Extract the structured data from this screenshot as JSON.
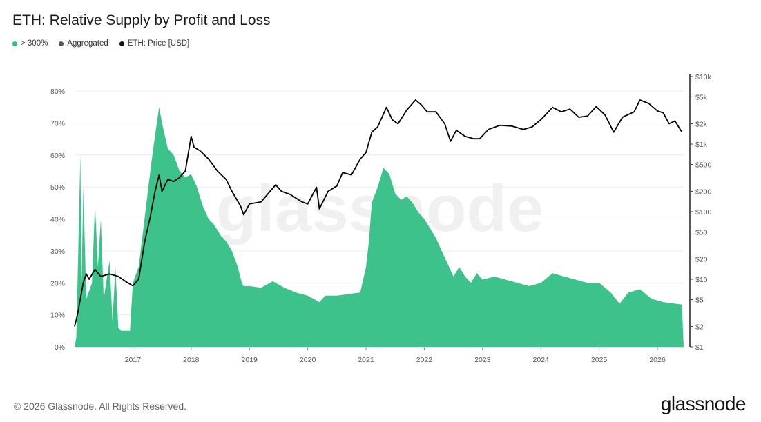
{
  "title": "ETH: Relative Supply by Profit and Loss",
  "legend": [
    {
      "label": "> 300%",
      "color": "#2fbf85",
      "icon": "dot"
    },
    {
      "label": "Aggregated",
      "color": "#555555",
      "icon": "dot"
    },
    {
      "label": "ETH: Price [USD]",
      "color": "#111111",
      "icon": "dot"
    }
  ],
  "footer": "© 2026 Glassnode. All Rights Reserved.",
  "brand": "glassnode",
  "watermark": "glassnode",
  "colors": {
    "area": "#3ec28c",
    "price": "#000000",
    "grid": "#ececec",
    "axis": "#222222"
  },
  "chart_data": {
    "type": "area",
    "y_left": {
      "ticks": [
        "0%",
        "10%",
        "20%",
        "30%",
        "40%",
        "50%",
        "60%",
        "70%",
        "80%"
      ],
      "range": [
        0,
        80
      ],
      "unit": "%"
    },
    "y_right": {
      "scale": "log",
      "ticks": [
        "$1",
        "$2",
        "$5",
        "$10",
        "$20",
        "$50",
        "$100",
        "$200",
        "$500",
        "$1k",
        "$2k",
        "$5k",
        "$10k"
      ],
      "tick_values": [
        1,
        2,
        5,
        10,
        20,
        50,
        100,
        200,
        500,
        1000,
        2000,
        5000,
        10000
      ]
    },
    "x": {
      "ticks": [
        "2017",
        "2018",
        "2019",
        "2020",
        "2021",
        "2022",
        "2023",
        "2024",
        "2025",
        "2026"
      ],
      "range": [
        2016.0,
        2026.45
      ]
    },
    "grid": true,
    "series": [
      {
        "name": "> 300%",
        "axis": "left",
        "type": "area",
        "points": [
          [
            2016.0,
            0
          ],
          [
            2016.03,
            3
          ],
          [
            2016.1,
            60
          ],
          [
            2016.12,
            20
          ],
          [
            2016.15,
            50
          ],
          [
            2016.2,
            15
          ],
          [
            2016.3,
            20
          ],
          [
            2016.35,
            45
          ],
          [
            2016.4,
            25
          ],
          [
            2016.45,
            40
          ],
          [
            2016.5,
            15
          ],
          [
            2016.6,
            27
          ],
          [
            2016.65,
            8
          ],
          [
            2016.7,
            25
          ],
          [
            2016.75,
            6
          ],
          [
            2016.8,
            5
          ],
          [
            2016.95,
            5
          ],
          [
            2017.0,
            20
          ],
          [
            2017.1,
            25
          ],
          [
            2017.2,
            40
          ],
          [
            2017.3,
            55
          ],
          [
            2017.35,
            62
          ],
          [
            2017.45,
            75
          ],
          [
            2017.5,
            70
          ],
          [
            2017.6,
            62
          ],
          [
            2017.7,
            60
          ],
          [
            2017.8,
            55
          ],
          [
            2017.9,
            53
          ],
          [
            2018.0,
            54
          ],
          [
            2018.1,
            50
          ],
          [
            2018.2,
            44
          ],
          [
            2018.3,
            40
          ],
          [
            2018.4,
            38
          ],
          [
            2018.5,
            35
          ],
          [
            2018.6,
            33
          ],
          [
            2018.7,
            30
          ],
          [
            2018.8,
            25
          ],
          [
            2018.87,
            20
          ],
          [
            2018.9,
            19
          ],
          [
            2019.0,
            19
          ],
          [
            2019.2,
            18.5
          ],
          [
            2019.4,
            20.5
          ],
          [
            2019.6,
            18.5
          ],
          [
            2019.8,
            17
          ],
          [
            2020.0,
            16
          ],
          [
            2020.1,
            15
          ],
          [
            2020.2,
            14
          ],
          [
            2020.3,
            16
          ],
          [
            2020.5,
            16
          ],
          [
            2020.7,
            16.5
          ],
          [
            2020.9,
            17
          ],
          [
            2021.0,
            25
          ],
          [
            2021.05,
            33
          ],
          [
            2021.1,
            45
          ],
          [
            2021.2,
            50
          ],
          [
            2021.3,
            56
          ],
          [
            2021.4,
            54
          ],
          [
            2021.5,
            48
          ],
          [
            2021.6,
            46
          ],
          [
            2021.7,
            47
          ],
          [
            2021.8,
            45
          ],
          [
            2021.9,
            42
          ],
          [
            2022.0,
            40
          ],
          [
            2022.1,
            37
          ],
          [
            2022.2,
            34
          ],
          [
            2022.3,
            30
          ],
          [
            2022.4,
            26
          ],
          [
            2022.5,
            22
          ],
          [
            2022.6,
            25
          ],
          [
            2022.7,
            22
          ],
          [
            2022.8,
            20
          ],
          [
            2022.9,
            23
          ],
          [
            2023.0,
            21
          ],
          [
            2023.2,
            22
          ],
          [
            2023.4,
            21
          ],
          [
            2023.6,
            20
          ],
          [
            2023.8,
            19
          ],
          [
            2024.0,
            20
          ],
          [
            2024.2,
            23
          ],
          [
            2024.4,
            22
          ],
          [
            2024.6,
            21
          ],
          [
            2024.8,
            20
          ],
          [
            2025.0,
            20
          ],
          [
            2025.2,
            17
          ],
          [
            2025.35,
            13.5
          ],
          [
            2025.5,
            17
          ],
          [
            2025.7,
            18
          ],
          [
            2025.9,
            15
          ],
          [
            2026.1,
            14
          ],
          [
            2026.3,
            13.5
          ],
          [
            2026.42,
            13.2
          ],
          [
            2026.45,
            0
          ]
        ]
      },
      {
        "name": "ETH: Price [USD]",
        "axis": "right",
        "type": "line",
        "points": [
          [
            2016.0,
            2
          ],
          [
            2016.05,
            3
          ],
          [
            2016.15,
            9
          ],
          [
            2016.2,
            12
          ],
          [
            2016.25,
            10
          ],
          [
            2016.35,
            14
          ],
          [
            2016.45,
            11
          ],
          [
            2016.6,
            12
          ],
          [
            2016.75,
            11
          ],
          [
            2016.9,
            9
          ],
          [
            2017.0,
            8
          ],
          [
            2017.1,
            10
          ],
          [
            2017.2,
            35
          ],
          [
            2017.3,
            85
          ],
          [
            2017.38,
            200
          ],
          [
            2017.45,
            350
          ],
          [
            2017.5,
            200
          ],
          [
            2017.6,
            300
          ],
          [
            2017.7,
            280
          ],
          [
            2017.8,
            320
          ],
          [
            2017.9,
            400
          ],
          [
            2018.0,
            1300
          ],
          [
            2018.05,
            900
          ],
          [
            2018.15,
            800
          ],
          [
            2018.3,
            600
          ],
          [
            2018.45,
            400
          ],
          [
            2018.6,
            300
          ],
          [
            2018.7,
            200
          ],
          [
            2018.85,
            120
          ],
          [
            2018.9,
            90
          ],
          [
            2019.0,
            130
          ],
          [
            2019.2,
            140
          ],
          [
            2019.45,
            250
          ],
          [
            2019.55,
            200
          ],
          [
            2019.7,
            180
          ],
          [
            2019.9,
            140
          ],
          [
            2020.0,
            130
          ],
          [
            2020.15,
            230
          ],
          [
            2020.2,
            110
          ],
          [
            2020.35,
            200
          ],
          [
            2020.5,
            240
          ],
          [
            2020.6,
            380
          ],
          [
            2020.75,
            350
          ],
          [
            2020.9,
            600
          ],
          [
            2021.0,
            750
          ],
          [
            2021.1,
            1500
          ],
          [
            2021.2,
            1800
          ],
          [
            2021.35,
            3500
          ],
          [
            2021.45,
            2300
          ],
          [
            2021.55,
            2000
          ],
          [
            2021.7,
            3200
          ],
          [
            2021.85,
            4500
          ],
          [
            2021.95,
            3800
          ],
          [
            2022.05,
            3000
          ],
          [
            2022.2,
            3000
          ],
          [
            2022.35,
            2000
          ],
          [
            2022.45,
            1100
          ],
          [
            2022.55,
            1600
          ],
          [
            2022.7,
            1300
          ],
          [
            2022.85,
            1200
          ],
          [
            2022.95,
            1200
          ],
          [
            2023.1,
            1650
          ],
          [
            2023.3,
            1900
          ],
          [
            2023.5,
            1850
          ],
          [
            2023.7,
            1650
          ],
          [
            2023.85,
            1800
          ],
          [
            2024.0,
            2300
          ],
          [
            2024.2,
            3500
          ],
          [
            2024.35,
            3000
          ],
          [
            2024.5,
            3300
          ],
          [
            2024.65,
            2500
          ],
          [
            2024.8,
            2600
          ],
          [
            2024.95,
            3600
          ],
          [
            2025.1,
            2700
          ],
          [
            2025.25,
            1500
          ],
          [
            2025.4,
            2500
          ],
          [
            2025.6,
            3000
          ],
          [
            2025.7,
            4500
          ],
          [
            2025.85,
            4000
          ],
          [
            2026.0,
            3100
          ],
          [
            2026.1,
            2900
          ],
          [
            2026.2,
            2000
          ],
          [
            2026.3,
            2200
          ],
          [
            2026.42,
            1500
          ]
        ]
      }
    ]
  }
}
